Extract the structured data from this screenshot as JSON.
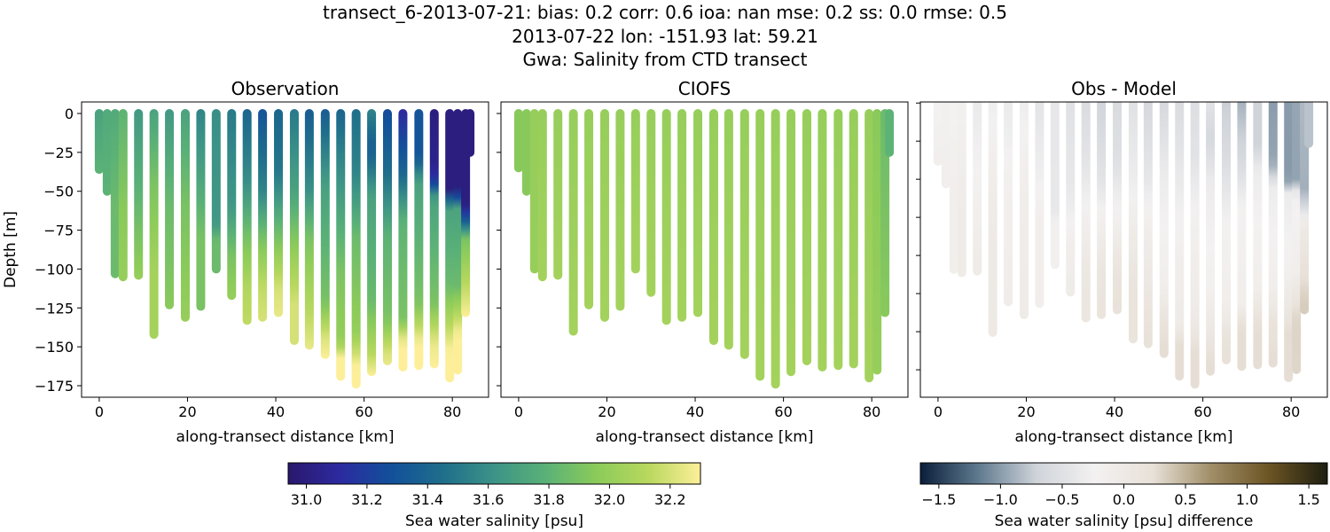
{
  "suptitle": {
    "line1": "transect_6-2013-07-21: bias: 0.2  corr: 0.6  ioa: nan  mse: 0.2  ss: 0.0  rmse: 0.5",
    "line2": "2013-07-22 lon: -151.93 lat: 59.21",
    "line3": "Gwa: Salinity from CTD transect"
  },
  "chart_data": [
    {
      "type": "scatter",
      "title": "Observation",
      "xlabel": "along-transect distance [km]",
      "ylabel": "Depth [m]",
      "xlim": [
        -4,
        88.2
      ],
      "ylim": [
        -182.4,
        7.4
      ],
      "xticks": [
        0,
        20,
        40,
        60,
        80
      ],
      "yticks": [
        0,
        -25,
        -50,
        -75,
        -100,
        -125,
        -150,
        -175
      ],
      "colormap": "haline",
      "profiles": [
        {
          "x": 0,
          "nodes": [
            [
              0,
              31.7
            ],
            [
              -36,
              31.8
            ]
          ]
        },
        {
          "x": 1.8,
          "nodes": [
            [
              0,
              31.75
            ],
            [
              -50,
              31.8
            ]
          ]
        },
        {
          "x": 3.6,
          "nodes": [
            [
              0,
              31.75
            ],
            [
              -60,
              31.85
            ],
            [
              -103,
              31.85
            ]
          ]
        },
        {
          "x": 5.4,
          "nodes": [
            [
              0,
              31.8
            ],
            [
              -60,
              31.95
            ],
            [
              -105,
              32.0
            ]
          ]
        },
        {
          "x": 8.9,
          "nodes": [
            [
              0,
              31.65
            ],
            [
              -50,
              31.8
            ],
            [
              -104,
              32.0
            ]
          ]
        },
        {
          "x": 12.4,
          "nodes": [
            [
              0,
              31.7
            ],
            [
              -45,
              31.9
            ],
            [
              -100,
              32.05
            ],
            [
              -142,
              32.05
            ]
          ]
        },
        {
          "x": 15.9,
          "nodes": [
            [
              0,
              31.65
            ],
            [
              -60,
              31.85
            ],
            [
              -123,
              31.95
            ]
          ]
        },
        {
          "x": 19.5,
          "nodes": [
            [
              0,
              31.7
            ],
            [
              -60,
              31.9
            ],
            [
              -131,
              32.0
            ]
          ]
        },
        {
          "x": 23,
          "nodes": [
            [
              0,
              31.55
            ],
            [
              -40,
              31.7
            ],
            [
              -80,
              31.9
            ],
            [
              -124,
              31.9
            ]
          ]
        },
        {
          "x": 26.5,
          "nodes": [
            [
              0,
              31.6
            ],
            [
              -70,
              31.65
            ],
            [
              -80,
              31.85
            ],
            [
              -100,
              31.85
            ]
          ]
        },
        {
          "x": 30,
          "nodes": [
            [
              0,
              31.5
            ],
            [
              -60,
              31.65
            ],
            [
              -90,
              31.9
            ],
            [
              -117,
              32.0
            ]
          ]
        },
        {
          "x": 33.5,
          "nodes": [
            [
              0,
              31.4
            ],
            [
              -45,
              31.6
            ],
            [
              -80,
              31.9
            ],
            [
              -110,
              32.1
            ],
            [
              -133,
              32.15
            ]
          ]
        },
        {
          "x": 37,
          "nodes": [
            [
              0,
              31.3
            ],
            [
              -50,
              31.55
            ],
            [
              -80,
              31.9
            ],
            [
              -110,
              32.15
            ],
            [
              -131,
              32.2
            ]
          ]
        },
        {
          "x": 40.6,
          "nodes": [
            [
              0,
              31.4
            ],
            [
              -40,
              31.5
            ],
            [
              -80,
              31.9
            ],
            [
              -110,
              32.2
            ],
            [
              -128,
              32.25
            ]
          ]
        },
        {
          "x": 44.2,
          "nodes": [
            [
              0,
              31.5
            ],
            [
              -50,
              31.7
            ],
            [
              -90,
              32.0
            ],
            [
              -120,
              32.2
            ],
            [
              -146,
              32.2
            ]
          ]
        },
        {
          "x": 47.6,
          "nodes": [
            [
              0,
              31.35
            ],
            [
              -50,
              31.6
            ],
            [
              -80,
              31.9
            ],
            [
              -130,
              32.15
            ],
            [
              -149,
              32.25
            ]
          ]
        },
        {
          "x": 51.2,
          "nodes": [
            [
              0,
              31.35
            ],
            [
              -50,
              31.7
            ],
            [
              -120,
              31.9
            ],
            [
              -140,
              32.2
            ],
            [
              -155,
              32.3
            ]
          ]
        },
        {
          "x": 54.7,
          "nodes": [
            [
              0,
              31.4
            ],
            [
              -60,
              31.7
            ],
            [
              -100,
              31.9
            ],
            [
              -145,
              32.0
            ],
            [
              -155,
              32.3
            ],
            [
              -169,
              32.3
            ]
          ]
        },
        {
          "x": 58.2,
          "nodes": [
            [
              0,
              31.45
            ],
            [
              -40,
              31.55
            ],
            [
              -80,
              31.85
            ],
            [
              -140,
              32.0
            ],
            [
              -160,
              32.3
            ],
            [
              -174,
              32.3
            ]
          ]
        },
        {
          "x": 61.7,
          "nodes": [
            [
              0,
              31.55
            ],
            [
              -25,
              31.35
            ],
            [
              -55,
              31.7
            ],
            [
              -120,
              31.85
            ],
            [
              -150,
              32.1
            ],
            [
              -166,
              32.3
            ]
          ]
        },
        {
          "x": 65.3,
          "nodes": [
            [
              0,
              31.25
            ],
            [
              -40,
              31.45
            ],
            [
              -80,
              31.8
            ],
            [
              -130,
              31.9
            ],
            [
              -150,
              32.2
            ],
            [
              -159,
              32.25
            ]
          ]
        },
        {
          "x": 68.8,
          "nodes": [
            [
              0,
              31.1
            ],
            [
              -40,
              31.4
            ],
            [
              -70,
              31.8
            ],
            [
              -130,
              31.9
            ],
            [
              -145,
              32.3
            ],
            [
              -163,
              32.3
            ]
          ]
        },
        {
          "x": 72.4,
          "nodes": [
            [
              0,
              31.3
            ],
            [
              -30,
              31.3
            ],
            [
              -45,
              31.7
            ],
            [
              -120,
              31.9
            ],
            [
              -145,
              32.3
            ],
            [
              -162,
              32.3
            ]
          ]
        },
        {
          "x": 75.9,
          "nodes": [
            [
              0,
              31.0
            ],
            [
              -35,
              31.05
            ],
            [
              -45,
              31.15
            ],
            [
              -55,
              31.7
            ],
            [
              -120,
              31.9
            ],
            [
              -145,
              32.25
            ],
            [
              -161,
              32.3
            ]
          ]
        },
        {
          "x": 79.4,
          "nodes": [
            [
              0,
              31.0
            ],
            [
              -52,
              31.0
            ],
            [
              -60,
              31.7
            ],
            [
              -110,
              31.85
            ],
            [
              -150,
              32.3
            ],
            [
              -170,
              32.3
            ]
          ]
        },
        {
          "x": 81.2,
          "nodes": [
            [
              0,
              31.0
            ],
            [
              -52,
              31.0
            ],
            [
              -60,
              31.7
            ],
            [
              -110,
              31.85
            ],
            [
              -140,
              32.3
            ],
            [
              -165,
              32.3
            ]
          ]
        },
        {
          "x": 83.0,
          "nodes": [
            [
              0,
              31.0
            ],
            [
              -58,
              31.0
            ],
            [
              -68,
              31.3
            ],
            [
              -80,
              31.9
            ],
            [
              -110,
              32.15
            ],
            [
              -128,
              32.3
            ]
          ]
        },
        {
          "x": 84.0,
          "nodes": [
            [
              0,
              31.0
            ],
            [
              -25,
              31.0
            ]
          ]
        }
      ]
    },
    {
      "type": "scatter",
      "title": "CIOFS",
      "xlabel": "along-transect distance [km]",
      "xlim": [
        -4,
        88.2
      ],
      "ylim": [
        -182.4,
        7.4
      ],
      "xticks": [
        0,
        20,
        40,
        60,
        80
      ],
      "colormap": "haline",
      "profiles": [
        {
          "x": 0,
          "nodes": [
            [
              0,
              31.95
            ],
            [
              -35,
              31.95
            ]
          ]
        },
        {
          "x": 1.8,
          "nodes": [
            [
              0,
              31.95
            ],
            [
              -50,
              31.95
            ]
          ]
        },
        {
          "x": 3.6,
          "nodes": [
            [
              0,
              32.0
            ],
            [
              -100,
              32.0
            ]
          ]
        },
        {
          "x": 5.4,
          "nodes": [
            [
              0,
              32.0
            ],
            [
              -105,
              32.05
            ]
          ]
        },
        {
          "x": 8.9,
          "nodes": [
            [
              0,
              32.0
            ],
            [
              -104,
              32.05
            ]
          ]
        },
        {
          "x": 12.4,
          "nodes": [
            [
              0,
              32.0
            ],
            [
              -140,
              32.05
            ]
          ]
        },
        {
          "x": 15.9,
          "nodes": [
            [
              0,
              32.0
            ],
            [
              -123,
              32.05
            ]
          ]
        },
        {
          "x": 19.5,
          "nodes": [
            [
              0,
              32.0
            ],
            [
              -131,
              32.05
            ]
          ]
        },
        {
          "x": 23,
          "nodes": [
            [
              0,
              32.0
            ],
            [
              -124,
              32.05
            ]
          ]
        },
        {
          "x": 26.5,
          "nodes": [
            [
              0,
              32.0
            ],
            [
              -100,
              32.05
            ]
          ]
        },
        {
          "x": 30,
          "nodes": [
            [
              0,
              32.0
            ],
            [
              -115,
              32.05
            ]
          ]
        },
        {
          "x": 33.5,
          "nodes": [
            [
              0,
              32.0
            ],
            [
              -133,
              32.05
            ]
          ]
        },
        {
          "x": 37,
          "nodes": [
            [
              0,
              32.0
            ],
            [
              -131,
              32.05
            ]
          ]
        },
        {
          "x": 40.6,
          "nodes": [
            [
              0,
              32.0
            ],
            [
              -128,
              32.05
            ]
          ]
        },
        {
          "x": 44.2,
          "nodes": [
            [
              0,
              32.0
            ],
            [
              -146,
              32.05
            ]
          ]
        },
        {
          "x": 47.6,
          "nodes": [
            [
              0,
              32.0
            ],
            [
              -149,
              32.05
            ]
          ]
        },
        {
          "x": 51.2,
          "nodes": [
            [
              0,
              32.0
            ],
            [
              -155,
              32.05
            ]
          ]
        },
        {
          "x": 54.7,
          "nodes": [
            [
              0,
              32.0
            ],
            [
              -169,
              32.05
            ]
          ]
        },
        {
          "x": 58.2,
          "nodes": [
            [
              0,
              32.0
            ],
            [
              -174,
              32.05
            ]
          ]
        },
        {
          "x": 61.7,
          "nodes": [
            [
              0,
              32.0
            ],
            [
              -166,
              32.05
            ]
          ]
        },
        {
          "x": 65.3,
          "nodes": [
            [
              0,
              32.0
            ],
            [
              -159,
              32.05
            ]
          ]
        },
        {
          "x": 68.8,
          "nodes": [
            [
              0,
              32.0
            ],
            [
              -163,
              32.05
            ]
          ]
        },
        {
          "x": 72.4,
          "nodes": [
            [
              0,
              32.0
            ],
            [
              -162,
              32.05
            ]
          ]
        },
        {
          "x": 75.9,
          "nodes": [
            [
              0,
              32.0
            ],
            [
              -161,
              32.05
            ]
          ]
        },
        {
          "x": 79.4,
          "nodes": [
            [
              0,
              32.0
            ],
            [
              -170,
              32.05
            ]
          ]
        },
        {
          "x": 81.2,
          "nodes": [
            [
              0,
              31.95
            ],
            [
              -165,
              32.0
            ]
          ]
        },
        {
          "x": 83.0,
          "nodes": [
            [
              0,
              31.85
            ],
            [
              -128,
              31.95
            ]
          ]
        },
        {
          "x": 84.0,
          "nodes": [
            [
              0,
              31.8
            ],
            [
              -25,
              31.8
            ]
          ]
        }
      ]
    },
    {
      "type": "scatter",
      "title": "Obs - Model",
      "xlabel": "along-transect distance [km]",
      "xlim": [
        -4,
        88.2
      ],
      "ylim": [
        -193,
        0.7
      ],
      "xticks": [
        0,
        20,
        40,
        60,
        80
      ],
      "colormap": "diff",
      "note_values": "Observation minus CIOFS"
    }
  ],
  "colorbars": [
    {
      "label": "Sea water salinity [psu]",
      "vmin": 30.94,
      "vmax": 32.3,
      "ticks": [
        "31.0",
        "31.2",
        "31.4",
        "31.6",
        "31.8",
        "32.0",
        "32.2"
      ]
    },
    {
      "label": "Sea water salinity [psu] difference",
      "vmin": -1.65,
      "vmax": 1.65,
      "ticks": [
        "−1.5",
        "−1.0",
        "−0.5",
        "0.0",
        "0.5",
        "1.0",
        "1.5"
      ]
    }
  ],
  "colors": {
    "haline": [
      "#2a186c",
      "#2c2aa0",
      "#12509a",
      "#1f6e8b",
      "#3c9387",
      "#5ab177",
      "#8ccb5a",
      "#b9d85e",
      "#fdef9a"
    ],
    "diff": [
      "#0a1f3a",
      "#5f7a8f",
      "#d0d4da",
      "#f3f1f1",
      "#e8e1d8",
      "#a08e68",
      "#6b5424",
      "#1e1e10"
    ]
  }
}
